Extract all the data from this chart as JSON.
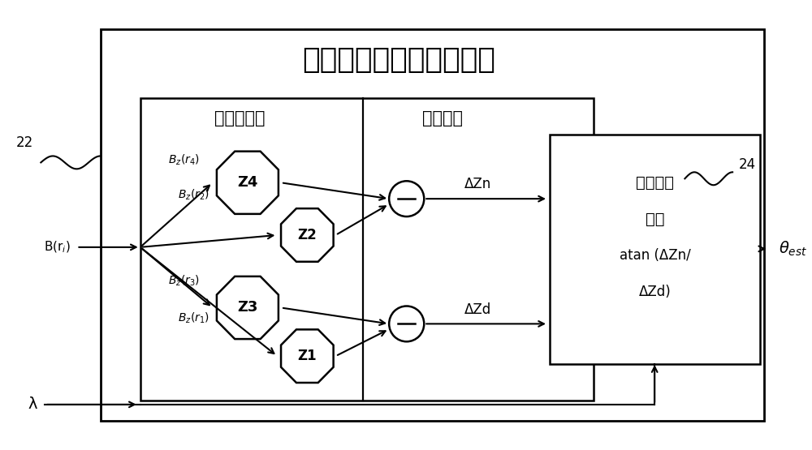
{
  "bg_color": "#ffffff",
  "title": "杂散场可靠的角度传感器",
  "title_fontsize": 26,
  "label_frontend": "传感器前端",
  "label_signal": "信号处理",
  "label_22": "22",
  "label_24": "24",
  "label_calc_line1": "角度计算",
  "label_calc_line2": "例如",
  "label_calc_line3": "atan (ΔZn/",
  "label_calc_line4": "ΔZd)",
  "label_DZn": "ΔZn",
  "label_DZd": "ΔZd",
  "label_lambda": "λ",
  "label_theta": "θ",
  "label_Bri": "B(r",
  "font_cjk": "SimHei"
}
